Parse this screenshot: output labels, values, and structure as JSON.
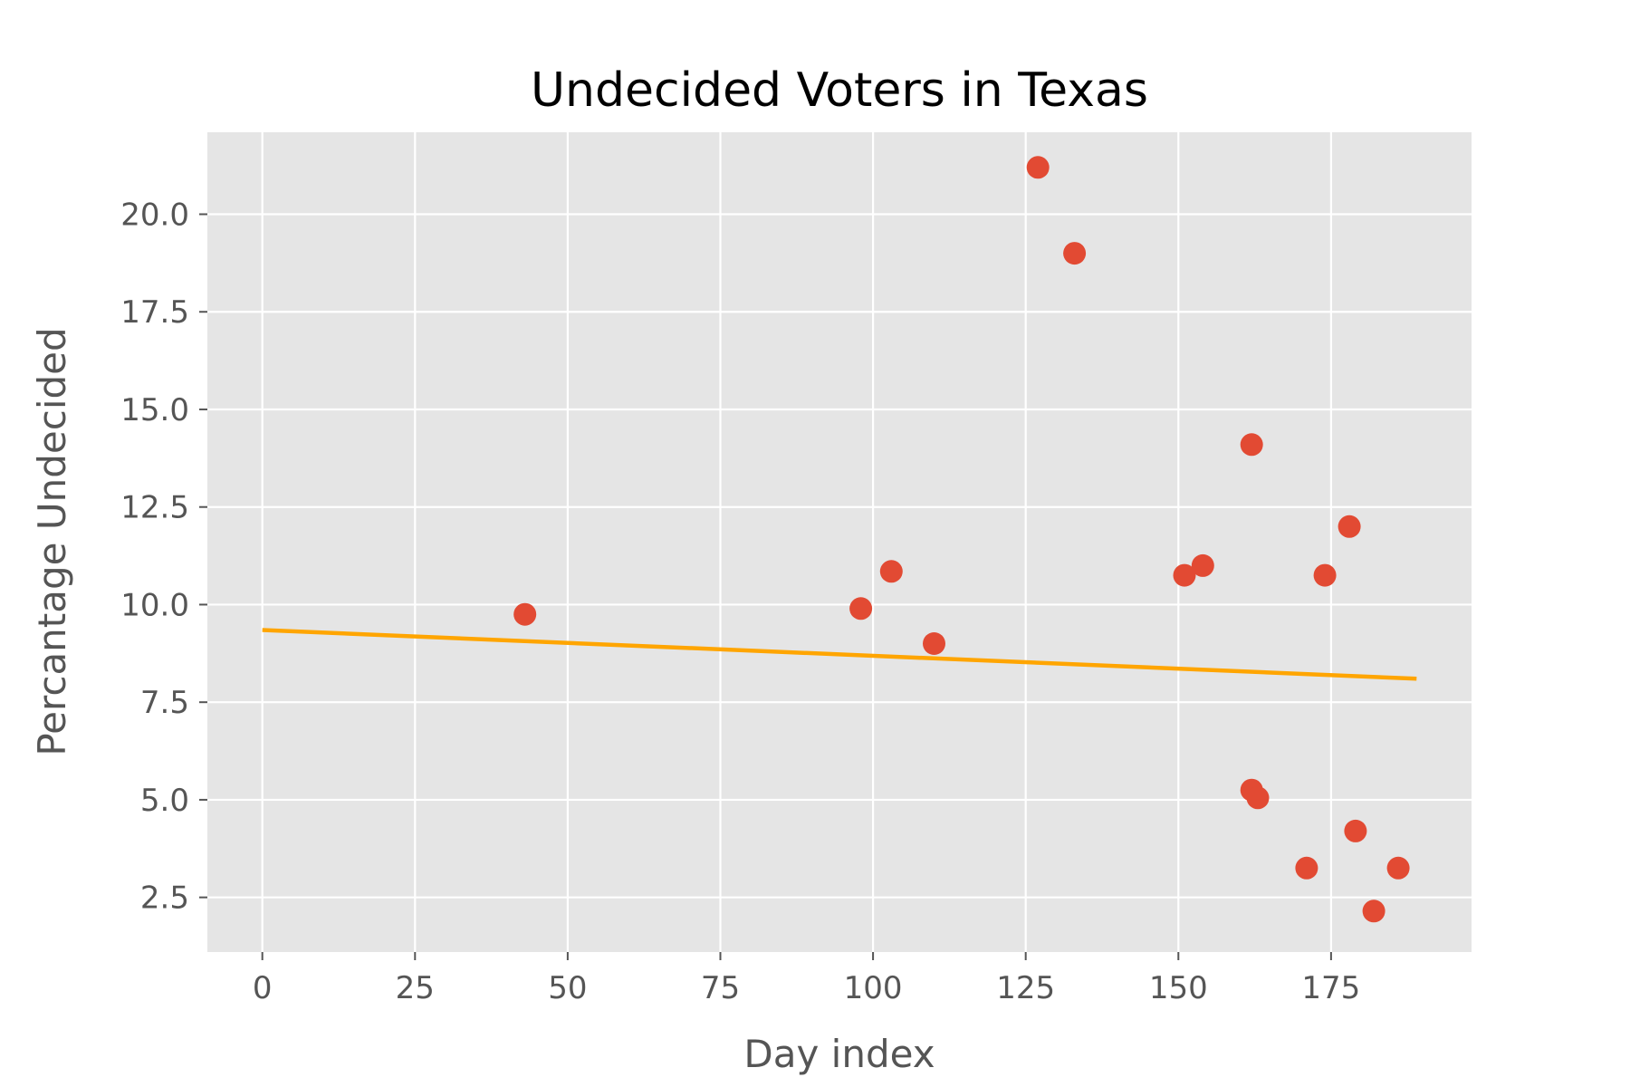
{
  "chart_data": {
    "type": "scatter",
    "title": "Undecided Voters in Texas",
    "xlabel": "Day index",
    "ylabel": "Percantage Undecided",
    "xlim": [
      -9,
      198
    ],
    "ylim": [
      1.1,
      22.1
    ],
    "grid": true,
    "legend": "none",
    "x_ticks": [
      0,
      25,
      50,
      75,
      100,
      125,
      150,
      175
    ],
    "x_tick_labels": [
      "0",
      "25",
      "50",
      "75",
      "100",
      "125",
      "150",
      "175"
    ],
    "y_ticks": [
      2.5,
      5.0,
      7.5,
      10.0,
      12.5,
      15.0,
      17.5,
      20.0
    ],
    "y_tick_labels": [
      "2.5",
      "5.0",
      "7.5",
      "10.0",
      "12.5",
      "15.0",
      "17.5",
      "20.0"
    ],
    "series": [
      {
        "kind": "scatter",
        "color": "#e24a33",
        "x": [
          43,
          98,
          103,
          110,
          127,
          133,
          151,
          154,
          162,
          162,
          163,
          171,
          174,
          178,
          179,
          182,
          186
        ],
        "y": [
          9.75,
          9.9,
          10.85,
          9.0,
          21.2,
          19.0,
          10.75,
          11.0,
          14.1,
          5.25,
          5.05,
          3.25,
          10.75,
          12.0,
          4.2,
          2.15,
          3.25
        ]
      },
      {
        "kind": "line",
        "color": "#ffa500",
        "x": [
          0,
          189
        ],
        "y": [
          9.35,
          8.1
        ]
      }
    ]
  },
  "colors": {
    "plot_background": "#e5e5e5",
    "grid": "#ffffff"
  }
}
